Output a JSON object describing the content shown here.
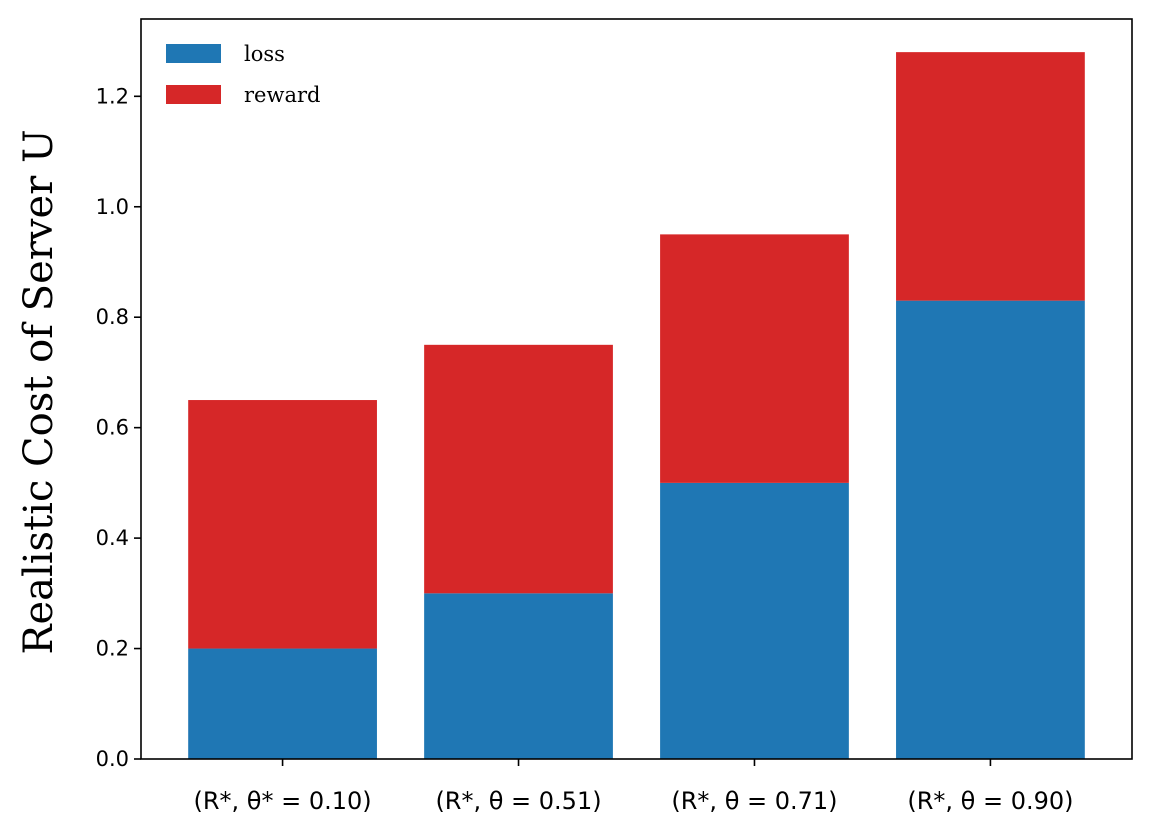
{
  "chart_data": {
    "type": "bar",
    "stacked": true,
    "categories": [
      "(R*, θ* = 0.10)",
      "(R*, θ = 0.51)",
      "(R*, θ = 0.71)",
      "(R*, θ = 0.90)"
    ],
    "series": [
      {
        "name": "loss",
        "values": [
          0.2,
          0.3,
          0.5,
          0.83
        ],
        "color": "#1f77b4"
      },
      {
        "name": "reward",
        "values": [
          0.45,
          0.45,
          0.45,
          0.45
        ],
        "color": "#d62728"
      }
    ],
    "title": "",
    "xlabel": "",
    "ylabel": "Realistic Cost of Server U",
    "ylim": [
      0,
      1.34
    ],
    "yticks": [
      0.0,
      0.2,
      0.4,
      0.6,
      0.8,
      1.0,
      1.2
    ],
    "ytick_labels": [
      "0.0",
      "0.2",
      "0.4",
      "0.6",
      "0.8",
      "1.0",
      "1.2"
    ],
    "grid": false,
    "legend_position": "top-left"
  }
}
